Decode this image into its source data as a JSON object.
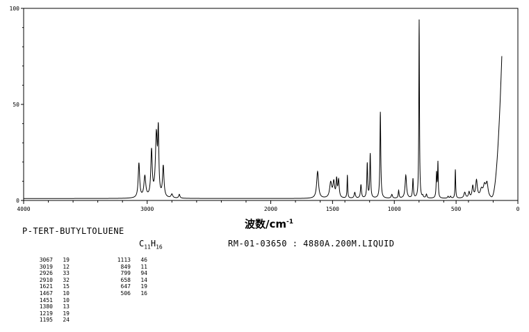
{
  "chart_data": {
    "type": "line",
    "xlabel": "波数/cm",
    "xlabel_sup": "-1",
    "ylabel": "",
    "x_reversed": true,
    "xlim": [
      4000,
      0
    ],
    "ylim": [
      0,
      100
    ],
    "x_ticks": [
      4000,
      3000,
      2000,
      1500,
      1000,
      500,
      0
    ],
    "x_tick_labels": [
      "4000",
      "3000",
      "2000",
      "1500",
      "1000",
      "500",
      "0"
    ],
    "y_ticks": [
      0,
      50,
      100
    ],
    "y_tick_labels": [
      "0",
      "50",
      "100"
    ],
    "baseline": 1,
    "rise": {
      "from_x": 215,
      "to_x": 130,
      "to_y": 75
    },
    "peaks": [
      {
        "x": 3067,
        "y": 19,
        "w": 7
      },
      {
        "x": 3019,
        "y": 12,
        "w": 9
      },
      {
        "x": 2965,
        "y": 25,
        "w": 7
      },
      {
        "x": 2926,
        "y": 33,
        "w": 9
      },
      {
        "x": 2910,
        "y": 32,
        "w": 5
      },
      {
        "x": 2870,
        "y": 17,
        "w": 7
      },
      {
        "x": 2800,
        "y": 3,
        "w": 8
      },
      {
        "x": 2740,
        "y": 3,
        "w": 6
      },
      {
        "x": 2620,
        "y": 1,
        "w": 10
      },
      {
        "x": 1621,
        "y": 15,
        "w": 9
      },
      {
        "x": 1515,
        "y": 9,
        "w": 10
      },
      {
        "x": 1490,
        "y": 9,
        "w": 8
      },
      {
        "x": 1467,
        "y": 10,
        "w": 5
      },
      {
        "x": 1451,
        "y": 10,
        "w": 6
      },
      {
        "x": 1380,
        "y": 13,
        "w": 3
      },
      {
        "x": 1320,
        "y": 4,
        "w": 6
      },
      {
        "x": 1270,
        "y": 8,
        "w": 5
      },
      {
        "x": 1219,
        "y": 19,
        "w": 4
      },
      {
        "x": 1195,
        "y": 24,
        "w": 4
      },
      {
        "x": 1113,
        "y": 46,
        "w": 4
      },
      {
        "x": 1020,
        "y": 3,
        "w": 6
      },
      {
        "x": 965,
        "y": 5,
        "w": 4
      },
      {
        "x": 907,
        "y": 13,
        "w": 7
      },
      {
        "x": 849,
        "y": 11,
        "w": 4
      },
      {
        "x": 799,
        "y": 94,
        "w": 3
      },
      {
        "x": 770,
        "y": 2,
        "w": 4
      },
      {
        "x": 740,
        "y": 3,
        "w": 5
      },
      {
        "x": 658,
        "y": 14,
        "w": 4
      },
      {
        "x": 647,
        "y": 19,
        "w": 3
      },
      {
        "x": 565,
        "y": 2,
        "w": 5
      },
      {
        "x": 545,
        "y": 2,
        "w": 5
      },
      {
        "x": 506,
        "y": 16,
        "w": 3
      },
      {
        "x": 430,
        "y": 4,
        "w": 8
      },
      {
        "x": 395,
        "y": 4,
        "w": 6
      },
      {
        "x": 365,
        "y": 7,
        "w": 7
      },
      {
        "x": 335,
        "y": 10,
        "w": 8
      },
      {
        "x": 295,
        "y": 5,
        "w": 12
      },
      {
        "x": 270,
        "y": 7,
        "w": 12
      },
      {
        "x": 250,
        "y": 8,
        "w": 10
      }
    ]
  },
  "compound": {
    "name": "P-TERT-BUTYLTOLUENE",
    "formula_c": "C",
    "formula_c_sub": "11",
    "formula_h": "H",
    "formula_h_sub": "16",
    "meta": "RM-01-03650 : 4880A.200M.LIQUID"
  },
  "peak_table": {
    "left": [
      {
        "wn": "3067",
        "int": "19"
      },
      {
        "wn": "3019",
        "int": "12"
      },
      {
        "wn": "2926",
        "int": "33"
      },
      {
        "wn": "2910",
        "int": "32"
      },
      {
        "wn": "1621",
        "int": "15"
      },
      {
        "wn": "1467",
        "int": "10"
      },
      {
        "wn": "1451",
        "int": "10"
      },
      {
        "wn": "1380",
        "int": "13"
      },
      {
        "wn": "1219",
        "int": "19"
      },
      {
        "wn": "1195",
        "int": "24"
      }
    ],
    "right": [
      {
        "wn": "1113",
        "int": "46"
      },
      {
        "wn": "849",
        "int": "11"
      },
      {
        "wn": "799",
        "int": "94"
      },
      {
        "wn": "658",
        "int": "14"
      },
      {
        "wn": "647",
        "int": "19"
      },
      {
        "wn": "506",
        "int": "16"
      }
    ]
  }
}
